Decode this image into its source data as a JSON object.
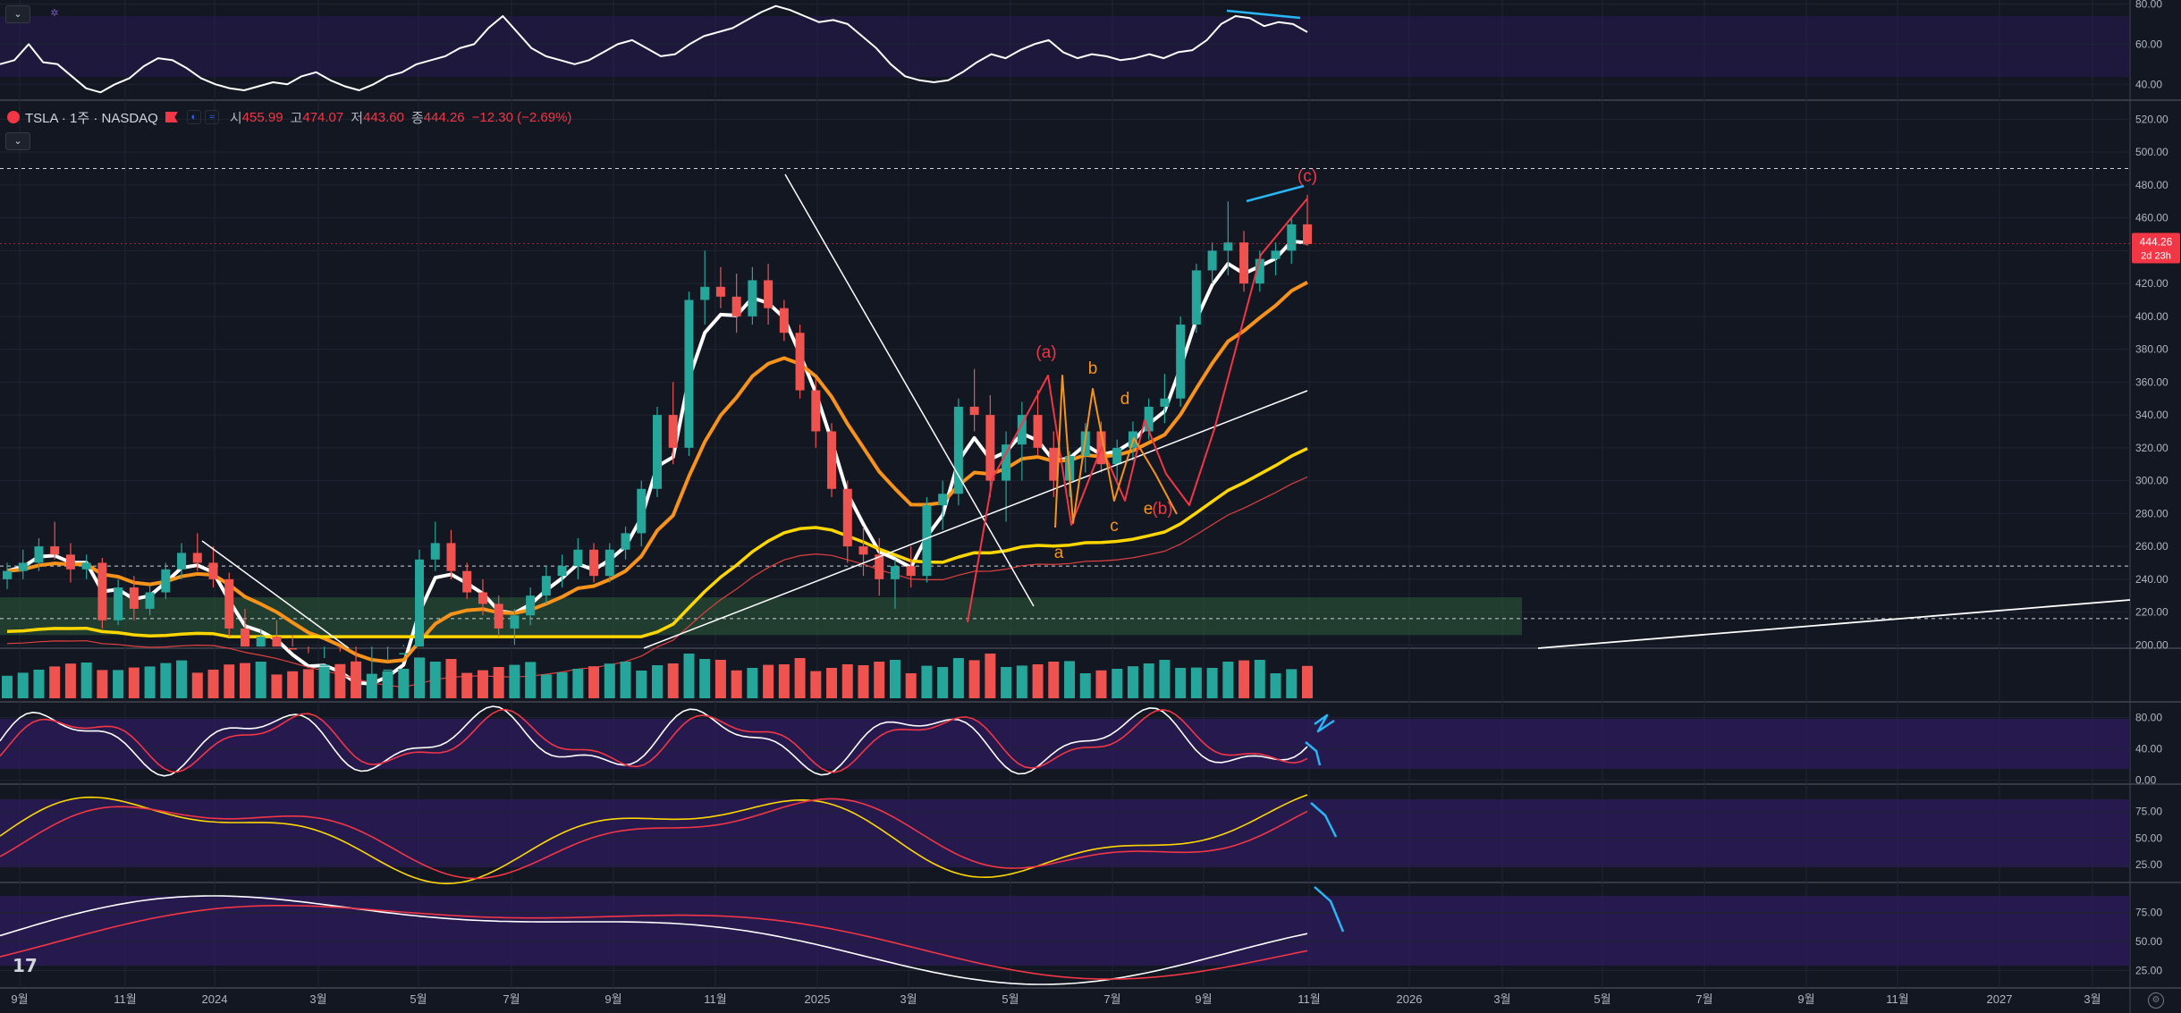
{
  "toolbar": {
    "collapse_icon": "chevron-down-icon",
    "indicator_icon": "settings-icon"
  },
  "legend": {
    "symbol": "TSLA · 1주 · NASDAQ",
    "open_label": "시",
    "open": "455.99",
    "high_label": "고",
    "high": "474.07",
    "low_label": "저",
    "low": "443.60",
    "close_label": "종",
    "close": "444.26",
    "change": "−12.30 (−2.69%)"
  },
  "price_tag": {
    "value": "444.26",
    "countdown": "2d 23h"
  },
  "logo_text": "17",
  "colors": {
    "up": "#26a69a",
    "down": "#ef5350",
    "white": "#ffffff",
    "orange": "#f7931a",
    "yellow": "#ffd700",
    "cyan": "#29b6f6",
    "osc_bg": "#2d1b5e",
    "zone": "#2e5d3a"
  },
  "chart_data": {
    "type": "candlestick",
    "x_axis_labels": [
      "9월",
      "11월",
      "2024",
      "3월",
      "5월",
      "7월",
      "9월",
      "11월",
      "2025",
      "3월",
      "5월",
      "7월",
      "9월",
      "11월",
      "2026",
      "3월",
      "5월",
      "7월",
      "9월",
      "11월",
      "2027",
      "3월"
    ],
    "panels": [
      {
        "name": "osc_top",
        "y_ticks": [
          "80.00",
          "60.00",
          "40.00"
        ],
        "ylim": [
          33,
          82
        ],
        "line": [
          50,
          52,
          60,
          51,
          50,
          44,
          38,
          36,
          40,
          43,
          49,
          53,
          52,
          48,
          43,
          40,
          38,
          37,
          39,
          41,
          40,
          44,
          46,
          42,
          39,
          37,
          40,
          44,
          46,
          50,
          52,
          54,
          58,
          60,
          68,
          74,
          66,
          58,
          54,
          52,
          50,
          52,
          56,
          60,
          62,
          58,
          54,
          55,
          60,
          64,
          66,
          68,
          72,
          76,
          79,
          77,
          74,
          71,
          72,
          70,
          64,
          58,
          50,
          44,
          42,
          41,
          42,
          46,
          51,
          55,
          53,
          57,
          60,
          62,
          56,
          53,
          55,
          54,
          52,
          53,
          55,
          53,
          56,
          57,
          62,
          70,
          74,
          73,
          69,
          71,
          70,
          66
        ]
      },
      {
        "name": "price",
        "y_ticks": [
          "520.00",
          "500.00",
          "480.00",
          "460.00",
          "440.00",
          "420.00",
          "400.00",
          "380.00",
          "360.00",
          "340.00",
          "320.00",
          "300.00",
          "280.00",
          "260.00",
          "240.00",
          "220.00",
          "200.00"
        ],
        "ylim": [
          198,
          530
        ],
        "candles": [
          [
            240,
            250,
            234,
            245
          ],
          [
            245,
            258,
            240,
            250
          ],
          [
            250,
            265,
            245,
            260
          ],
          [
            260,
            275,
            252,
            255
          ],
          [
            255,
            262,
            238,
            246
          ],
          [
            246,
            255,
            240,
            250
          ],
          [
            250,
            253,
            210,
            215
          ],
          [
            215,
            240,
            212,
            235
          ],
          [
            235,
            242,
            215,
            222
          ],
          [
            222,
            236,
            218,
            232
          ],
          [
            232,
            250,
            228,
            246
          ],
          [
            246,
            262,
            240,
            256
          ],
          [
            256,
            268,
            245,
            250
          ],
          [
            250,
            260,
            235,
            240
          ],
          [
            240,
            244,
            205,
            210
          ],
          [
            210,
            222,
            190,
            196
          ],
          [
            196,
            210,
            185,
            205
          ],
          [
            205,
            215,
            192,
            198
          ],
          [
            198,
            206,
            180,
            185
          ],
          [
            185,
            195,
            172,
            180
          ],
          [
            180,
            192,
            170,
            188
          ],
          [
            188,
            196,
            175,
            180
          ],
          [
            180,
            186,
            165,
            170
          ],
          [
            170,
            182,
            160,
            176
          ],
          [
            176,
            190,
            170,
            185
          ],
          [
            185,
            200,
            180,
            195
          ],
          [
            195,
            258,
            190,
            252
          ],
          [
            252,
            275,
            245,
            262
          ],
          [
            262,
            270,
            240,
            245
          ],
          [
            245,
            250,
            228,
            232
          ],
          [
            232,
            240,
            218,
            225
          ],
          [
            225,
            230,
            205,
            210
          ],
          [
            210,
            222,
            200,
            218
          ],
          [
            218,
            235,
            212,
            230
          ],
          [
            230,
            248,
            225,
            242
          ],
          [
            242,
            255,
            235,
            248
          ],
          [
            248,
            265,
            240,
            258
          ],
          [
            258,
            262,
            238,
            242
          ],
          [
            242,
            262,
            238,
            258
          ],
          [
            258,
            272,
            252,
            268
          ],
          [
            268,
            300,
            260,
            295
          ],
          [
            295,
            345,
            290,
            340
          ],
          [
            340,
            360,
            310,
            320
          ],
          [
            320,
            415,
            315,
            410
          ],
          [
            410,
            440,
            395,
            418
          ],
          [
            418,
            430,
            405,
            412
          ],
          [
            412,
            426,
            390,
            400
          ],
          [
            400,
            430,
            395,
            422
          ],
          [
            422,
            432,
            395,
            405
          ],
          [
            405,
            410,
            385,
            390
          ],
          [
            390,
            395,
            350,
            355
          ],
          [
            355,
            362,
            320,
            330
          ],
          [
            330,
            335,
            290,
            295
          ],
          [
            295,
            300,
            250,
            260
          ],
          [
            260,
            272,
            242,
            255
          ],
          [
            255,
            265,
            230,
            240
          ],
          [
            240,
            252,
            222,
            248
          ],
          [
            248,
            260,
            235,
            242
          ],
          [
            242,
            290,
            238,
            285
          ],
          [
            285,
            300,
            270,
            292
          ],
          [
            292,
            350,
            285,
            345
          ],
          [
            345,
            368,
            330,
            340
          ],
          [
            340,
            352,
            290,
            300
          ],
          [
            300,
            330,
            275,
            322
          ],
          [
            322,
            348,
            300,
            340
          ],
          [
            340,
            355,
            315,
            320
          ],
          [
            320,
            330,
            290,
            300
          ],
          [
            300,
            318,
            290,
            315
          ],
          [
            315,
            335,
            305,
            330
          ],
          [
            330,
            336,
            305,
            310
          ],
          [
            310,
            325,
            300,
            320
          ],
          [
            320,
            336,
            312,
            330
          ],
          [
            330,
            350,
            325,
            345
          ],
          [
            345,
            365,
            335,
            350
          ],
          [
            350,
            400,
            345,
            395
          ],
          [
            395,
            432,
            390,
            428
          ],
          [
            428,
            445,
            420,
            440
          ],
          [
            440,
            470,
            425,
            445
          ],
          [
            445,
            452,
            415,
            420
          ],
          [
            420,
            440,
            415,
            435
          ],
          [
            435,
            445,
            425,
            440
          ],
          [
            440,
            460,
            432,
            456
          ],
          [
            456,
            474,
            443,
            444
          ]
        ],
        "wave_labels": [
          "(a)",
          "b",
          "d",
          "a",
          "c",
          "e",
          "(b)",
          "(c)"
        ]
      },
      {
        "name": "volume"
      },
      {
        "name": "osc_1",
        "y_ticks": [
          "80.00",
          "40.00",
          "0.00"
        ],
        "ylim": [
          -3,
          100
        ]
      },
      {
        "name": "osc_2",
        "y_ticks": [
          "75.00",
          "50.00",
          "25.00"
        ],
        "ylim": [
          10,
          100
        ]
      },
      {
        "name": "osc_3",
        "y_ticks": [
          "75.00",
          "50.00",
          "25.00"
        ],
        "ylim": [
          10,
          100
        ]
      }
    ]
  }
}
